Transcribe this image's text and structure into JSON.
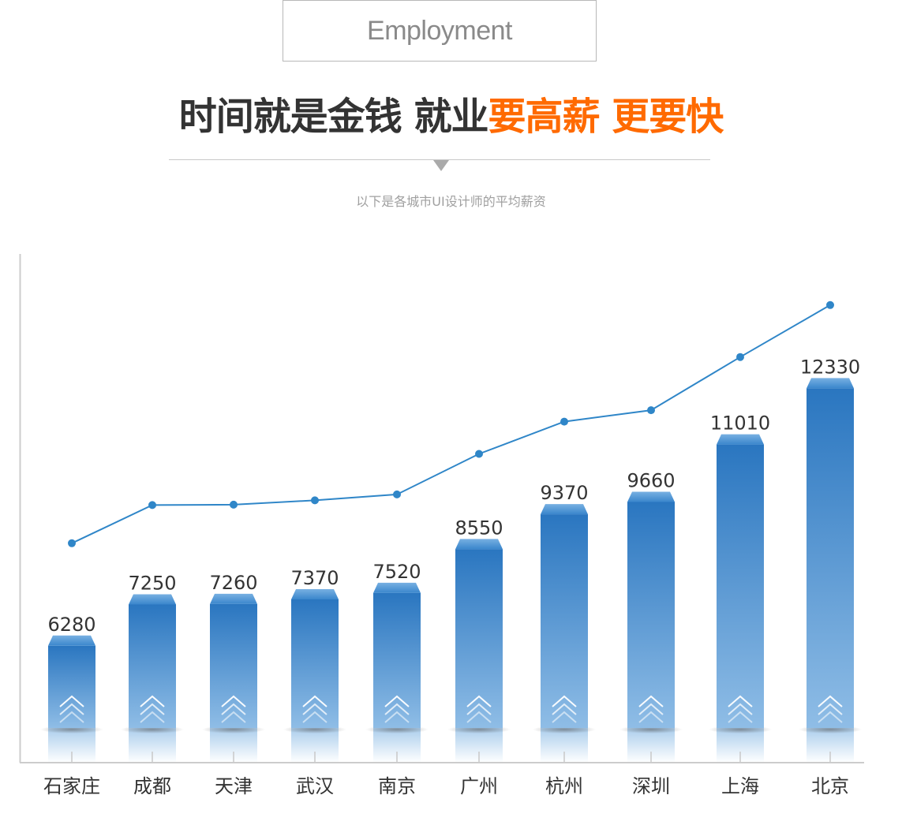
{
  "header": {
    "badge_label": "Employment",
    "headline_part1": "时间就是金钱 就业",
    "headline_part2": "要高薪 更要快",
    "subtitle": "以下是各城市UI设计师的平均薪资"
  },
  "colors": {
    "accent": "#ff6a00",
    "bar_top": "#2a76c0",
    "bar_bottom": "#8fbde6",
    "line": "#2f86c8"
  },
  "chart_data": {
    "type": "bar",
    "categories": [
      "石家庄",
      "成都",
      "天津",
      "武汉",
      "南京",
      "广州",
      "杭州",
      "深圳",
      "上海",
      "北京"
    ],
    "values": [
      6280,
      7250,
      7260,
      7370,
      7520,
      8550,
      9370,
      9660,
      11010,
      12330
    ],
    "overlay_line": true,
    "title": "",
    "xlabel": "",
    "ylabel": "",
    "legend": "none",
    "grid": false
  }
}
